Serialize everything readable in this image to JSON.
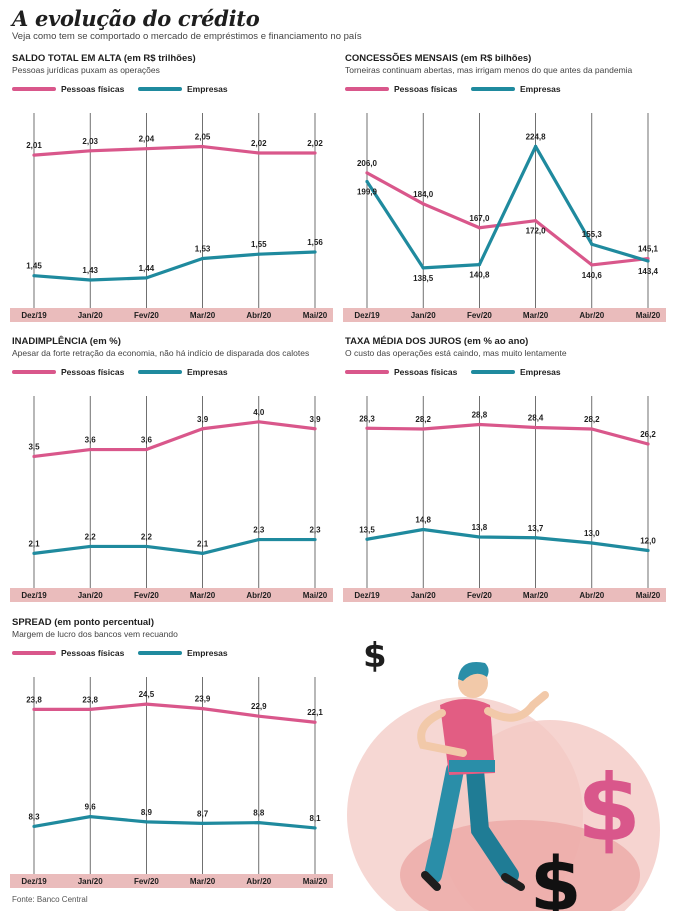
{
  "header": {
    "title": "A evolução do crédito",
    "subtitle": "Veja como tem se comportado o mercado de empréstimos e financiamento no país"
  },
  "footer": {
    "source": "Fonte: Banco Central"
  },
  "colors": {
    "pf": "#d9578b",
    "emp": "#1f8a9e",
    "axis_band": "#eabcbc",
    "text": "#1e1e1e"
  },
  "illustration": {
    "icons": [
      "dollar-sign-icon",
      "person-dancing-illustration"
    ]
  },
  "chart_data": [
    {
      "id": "saldo",
      "type": "line",
      "title": "SALDO TOTAL EM ALTA (em R$ trilhões)",
      "subtitle": "Pessoas jurídicas puxam as operações",
      "categories": [
        "Dez/19",
        "Jan/20",
        "Fev/20",
        "Mar/20",
        "Abr/20",
        "Mai/20"
      ],
      "series": [
        {
          "name": "Pessoas físicas",
          "values": [
            2.01,
            2.03,
            2.04,
            2.05,
            2.02,
            2.02
          ],
          "labels": [
            "2,01",
            "2,03",
            "2,04",
            "2,05",
            "2,02",
            "2,02"
          ]
        },
        {
          "name": "Empresas",
          "values": [
            1.45,
            1.43,
            1.44,
            1.53,
            1.55,
            1.56
          ],
          "labels": [
            "1,45",
            "1,43",
            "1,44",
            "1,53",
            "1,55",
            "1,56"
          ]
        }
      ],
      "legend": "top-left",
      "ylim": [
        1.3,
        2.15
      ]
    },
    {
      "id": "concessoes",
      "type": "line",
      "title": "CONCESSÕES MENSAIS (em R$ bilhões)",
      "subtitle": "Torneiras continuam abertas, mas irrigam menos do que antes da pandemia",
      "categories": [
        "Dez/19",
        "Jan/20",
        "Fev/20",
        "Mar/20",
        "Abr/20",
        "Mai/20"
      ],
      "series": [
        {
          "name": "Pessoas físicas",
          "values": [
            206.0,
            184.0,
            167.0,
            172.0,
            140.6,
            145.1
          ],
          "labels": [
            "206,0",
            "184,0",
            "167,0",
            "172,0",
            "140,6",
            "145,1"
          ]
        },
        {
          "name": "Empresas",
          "values": [
            199.9,
            138.5,
            140.8,
            224.8,
            155.3,
            143.4
          ],
          "labels": [
            "199,9",
            "138,5",
            "140,8",
            "224,8",
            "155,3",
            "143,4"
          ]
        }
      ],
      "legend": "top-left",
      "ylim": [
        110,
        240
      ]
    },
    {
      "id": "inadimplencia",
      "type": "line",
      "title": "INADIMPLÊNCIA (em %)",
      "subtitle": "Apesar da forte retração da economia, não há indício de disparada dos calotes",
      "categories": [
        "Dez/19",
        "Jan/20",
        "Fev/20",
        "Mar/20",
        "Abr/20",
        "Mai/20"
      ],
      "series": [
        {
          "name": "Pessoas físicas",
          "values": [
            3.5,
            3.6,
            3.6,
            3.9,
            4.0,
            3.9
          ],
          "labels": [
            "3,5",
            "3,6",
            "3,6",
            "3,9",
            "4,0",
            "3,9"
          ]
        },
        {
          "name": "Empresas",
          "values": [
            2.1,
            2.2,
            2.2,
            2.1,
            2.3,
            2.3
          ],
          "labels": [
            "2,1",
            "2,2",
            "2,2",
            "2,1",
            "2,3",
            "2,3"
          ]
        }
      ],
      "legend": "top-left",
      "ylim": [
        1.6,
        4.2
      ]
    },
    {
      "id": "juros",
      "type": "line",
      "title": "TAXA MÉDIA DOS JUROS (em % ao ano)",
      "subtitle": "O custo das operações está caindo, mas muito lentamente",
      "categories": [
        "Dez/19",
        "Jan/20",
        "Fev/20",
        "Mar/20",
        "Abr/20",
        "Mai/20"
      ],
      "series": [
        {
          "name": "Pessoas físicas",
          "values": [
            28.3,
            28.2,
            28.8,
            28.4,
            28.2,
            26.2
          ],
          "labels": [
            "28,3",
            "28,2",
            "28,8",
            "28,4",
            "28,2",
            "26,2"
          ]
        },
        {
          "name": "Empresas",
          "values": [
            13.5,
            14.8,
            13.8,
            13.7,
            13.0,
            12.0
          ],
          "labels": [
            "13,5",
            "14,8",
            "13,8",
            "13,7",
            "13,0",
            "12,0"
          ]
        }
      ],
      "legend": "top-left",
      "ylim": [
        7,
        31
      ]
    },
    {
      "id": "spread",
      "type": "line",
      "title": "SPREAD (em ponto percentual)",
      "subtitle": "Margem de lucro dos bancos vem recuando",
      "categories": [
        "Dez/19",
        "Jan/20",
        "Fev/20",
        "Mar/20",
        "Abr/20",
        "Mai/20"
      ],
      "series": [
        {
          "name": "Pessoas físicas",
          "values": [
            23.8,
            23.8,
            24.5,
            23.9,
            22.9,
            22.1
          ],
          "labels": [
            "23,8",
            "23,8",
            "24,5",
            "23,9",
            "22,9",
            "22,1"
          ]
        },
        {
          "name": "Empresas",
          "values": [
            8.3,
            9.6,
            8.9,
            8.7,
            8.8,
            8.1
          ],
          "labels": [
            "8,3",
            "9,6",
            "8,9",
            "8,7",
            "8,8",
            "8,1"
          ]
        }
      ],
      "legend": "top-left",
      "ylim": [
        2,
        26.5
      ]
    }
  ]
}
